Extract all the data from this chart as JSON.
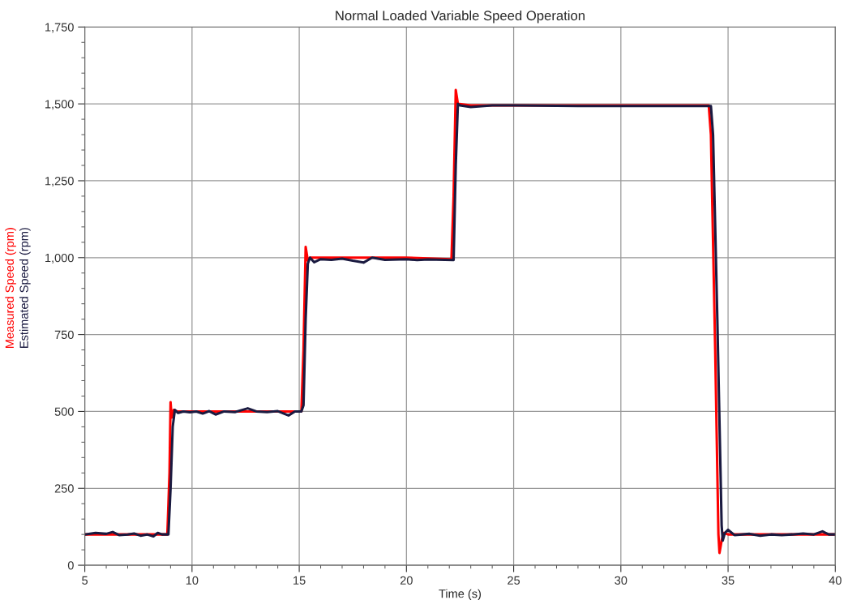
{
  "chart_data": {
    "type": "line",
    "title": "Normal Loaded Variable Speed Operation",
    "xlabel": "Time (s)",
    "xlim": [
      5,
      40
    ],
    "xticks": [
      5,
      10,
      15,
      20,
      25,
      30,
      35,
      40
    ],
    "ylim": [
      0,
      1750
    ],
    "yticks": [
      0,
      {
        "value": 250,
        "label": "250"
      },
      {
        "value": 500,
        "label": "500"
      },
      {
        "value": 750,
        "label": "750"
      },
      {
        "value": 1000,
        "label": "1,000"
      },
      {
        "value": 1250,
        "label": "1,250"
      },
      {
        "value": 1500,
        "label": "1,500"
      },
      {
        "value": 1750,
        "label": "1,750"
      }
    ],
    "grid": true,
    "legend": "left",
    "marker": "none",
    "line_style": "solid",
    "series": [
      {
        "name": "Measured Speed (rpm)",
        "color": "#ff0000",
        "x": [
          5,
          6,
          7,
          8,
          8.85,
          8.95,
          9.0,
          9.05,
          9.15,
          9.3,
          10,
          12,
          14,
          15.1,
          15.2,
          15.3,
          15.4,
          15.5,
          17,
          20,
          22.1,
          22.2,
          22.3,
          22.4,
          23,
          30,
          34.1,
          34.2,
          34.4,
          34.55,
          34.6,
          34.7,
          34.8,
          35,
          40
        ],
        "values": [
          100,
          100,
          100,
          100,
          100,
          300,
          530,
          480,
          505,
          500,
          500,
          500,
          500,
          500,
          700,
          1035,
          990,
          1000,
          1000,
          1000,
          995,
          1200,
          1545,
          1500,
          1495,
          1495,
          1495,
          1400,
          700,
          100,
          40,
          80,
          105,
          100,
          100
        ]
      },
      {
        "name": "Estimated Speed (rpm)",
        "color": "#1a1a40",
        "x": [
          5,
          5.5,
          6,
          6.3,
          6.6,
          7,
          7.3,
          7.6,
          7.9,
          8.2,
          8.4,
          8.6,
          8.9,
          9.0,
          9.1,
          9.2,
          9.35,
          9.6,
          9.9,
          10.2,
          10.5,
          10.8,
          11.1,
          11.5,
          12,
          12.6,
          13,
          13.5,
          14,
          14.5,
          14.8,
          15.1,
          15.2,
          15.3,
          15.4,
          15.5,
          15.7,
          16,
          16.5,
          17,
          17.5,
          18,
          18.4,
          19,
          20,
          20.5,
          21,
          22.2,
          22.3,
          22.4,
          22.5,
          23,
          24,
          25,
          28,
          34.2,
          34.3,
          34.5,
          34.7,
          34.75,
          34.85,
          35,
          35.3,
          36,
          36.5,
          37,
          37.5,
          38,
          38.5,
          39,
          39.4,
          39.7,
          40
        ],
        "values": [
          100,
          105,
          102,
          108,
          98,
          100,
          103,
          96,
          100,
          94,
          105,
          100,
          100,
          250,
          450,
          505,
          495,
          500,
          497,
          500,
          493,
          501,
          490,
          500,
          498,
          510,
          500,
          498,
          501,
          487,
          500,
          500,
          520,
          800,
          980,
          1000,
          985,
          995,
          993,
          997,
          990,
          984,
          1000,
          993,
          995,
          992,
          994,
          992,
          1300,
          1500,
          1495,
          1490,
          1495,
          1495,
          1493,
          1493,
          1400,
          800,
          130,
          80,
          105,
          115,
          98,
          102,
          96,
          100,
          98,
          100,
          103,
          100,
          110,
          100,
          100
        ]
      }
    ]
  }
}
